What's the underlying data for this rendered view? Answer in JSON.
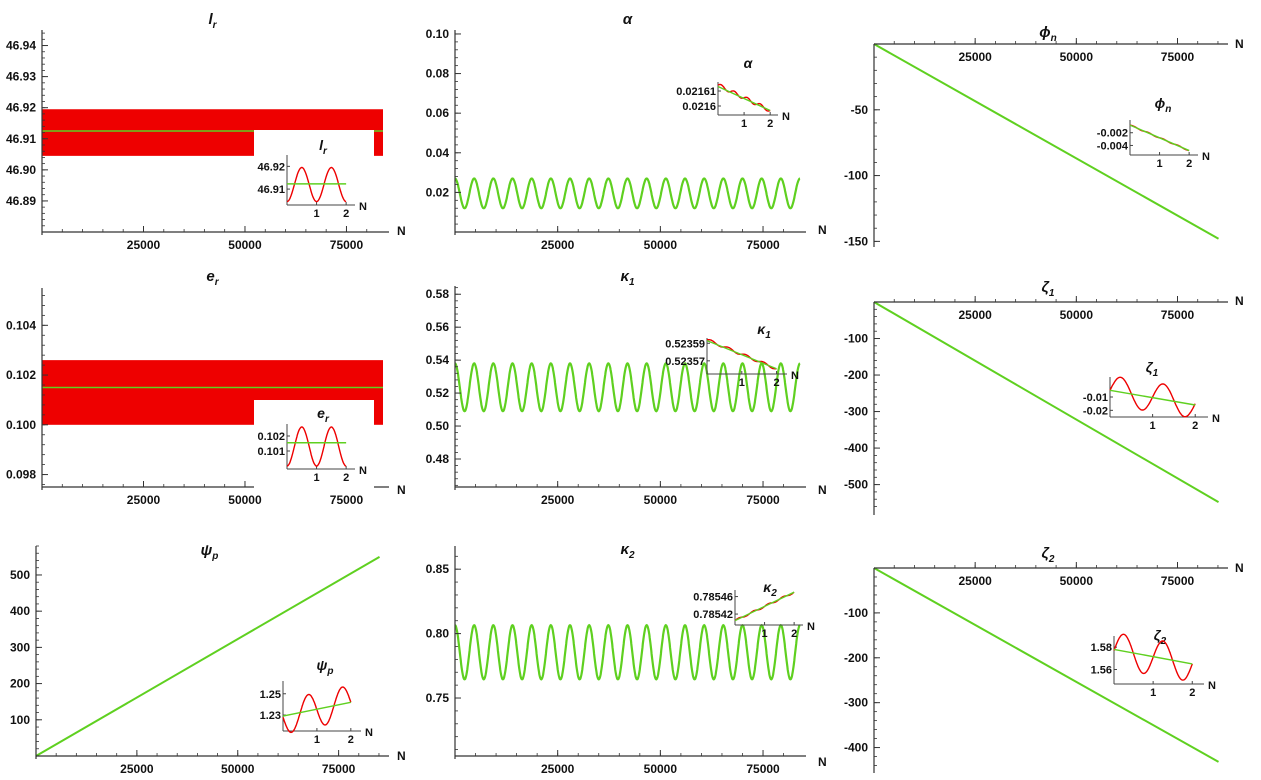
{
  "colors": {
    "band": "#ee0000",
    "mean": "#5fd020",
    "axis": "#333333"
  },
  "chart_data": [
    {
      "id": "lr",
      "type": "line",
      "title_main": "l",
      "title_sub": "r",
      "xlabel": "N",
      "xlim": [
        0,
        84000
      ],
      "ylim": [
        46.88,
        46.945
      ],
      "x_axis_at": 46.88,
      "xticks": [
        "25000",
        "50000",
        "75000"
      ],
      "xtick_values": [
        25000,
        50000,
        75000
      ],
      "yticks": [
        "46.89",
        "46.90",
        "46.91",
        "46.92",
        "46.93",
        "46.94"
      ],
      "ytick_values": [
        46.89,
        46.9,
        46.91,
        46.92,
        46.93,
        46.94
      ],
      "band": {
        "lo": 46.9045,
        "hi": 46.9195
      },
      "mean": 46.9125,
      "inset": {
        "title_main": "l",
        "title_sub": "r",
        "xlabel": "N",
        "xlim": [
          0,
          2.3
        ],
        "ylim": [
          46.903,
          46.925
        ],
        "xticks": [
          "1",
          "2"
        ],
        "xtick_values": [
          1,
          2
        ],
        "yticks": [
          "46.92",
          "46.91"
        ],
        "ytick_values": [
          46.92,
          46.91
        ],
        "red": {
          "kind": "sin",
          "amp": 0.0075,
          "offset": 46.912,
          "period": 1,
          "phase": 0.5
        },
        "green": {
          "start": 46.9123,
          "end": 46.9123
        }
      }
    },
    {
      "id": "alpha",
      "type": "line",
      "title_main": "α",
      "title_sub": "",
      "xlabel": "N",
      "xlim": [
        0,
        84000
      ],
      "ylim": [
        0,
        0.102
      ],
      "x_axis_at": 0,
      "xticks": [
        "25000",
        "50000",
        "75000"
      ],
      "xtick_values": [
        25000,
        50000,
        75000
      ],
      "yticks": [
        "0.02",
        "0.04",
        "0.06",
        "0.08",
        "0.10"
      ],
      "ytick_values": [
        0.02,
        0.04,
        0.06,
        0.08,
        0.1
      ],
      "oscillation": {
        "center": 0.0195,
        "amp": 0.0075,
        "cycles": 18
      },
      "inset": {
        "title_main": "α",
        "title_sub": "",
        "xlabel": "N",
        "xlim": [
          0,
          2.3
        ],
        "ylim": [
          0.021594,
          0.021616
        ],
        "xticks": [
          "1",
          "2"
        ],
        "xtick_values": [
          1,
          2
        ],
        "yticks": [
          "0.02161",
          "0.0216"
        ],
        "ytick_values": [
          0.02161,
          0.0216
        ],
        "red": {
          "kind": "wavy",
          "start": 0.021614,
          "end": 0.021597,
          "amp": 1.2e-06,
          "period": 0.5
        },
        "green": {
          "start": 0.021613,
          "end": 0.021597
        }
      }
    },
    {
      "id": "phin",
      "type": "line",
      "title_main": "ϕ",
      "title_sub": "n",
      "xlabel": "N",
      "xlim": [
        0,
        86000
      ],
      "ylim": [
        -152,
        0
      ],
      "x_axis_at": 0,
      "xticks": [
        "25000",
        "50000",
        "75000"
      ],
      "xtick_values": [
        25000,
        50000,
        75000
      ],
      "yticks": [
        "-50",
        "-100",
        "-150"
      ],
      "ytick_values": [
        -50,
        -100,
        -150
      ],
      "linear": {
        "start": 0,
        "end": -148
      },
      "inset": {
        "title_main": "ϕ",
        "title_sub": "n",
        "xlabel": "N",
        "xlim": [
          0,
          2.3
        ],
        "ylim": [
          -0.0055,
          0
        ],
        "xticks": [
          "1",
          "2"
        ],
        "xtick_values": [
          1,
          2
        ],
        "yticks": [
          "-0.002",
          "-0.004"
        ],
        "ytick_values": [
          -0.002,
          -0.004
        ],
        "red": {
          "kind": "wavy",
          "start": -0.0008,
          "end": -0.0048,
          "amp": 8e-05,
          "period": 0.5
        },
        "green": {
          "start": -0.0008,
          "end": -0.0048
        }
      }
    },
    {
      "id": "er",
      "type": "line",
      "title_main": "e",
      "title_sub": "r",
      "xlabel": "N",
      "xlim": [
        0,
        84000
      ],
      "ylim": [
        0.0975,
        0.1055
      ],
      "x_axis_at": 0.0975,
      "xticks": [
        "25000",
        "50000",
        "75000"
      ],
      "xtick_values": [
        25000,
        50000,
        75000
      ],
      "yticks": [
        "0.098",
        "0.100",
        "0.102",
        "0.104"
      ],
      "ytick_values": [
        0.098,
        0.1,
        0.102,
        0.104
      ],
      "band": {
        "lo": 0.1,
        "hi": 0.1026
      },
      "mean": 0.1015,
      "inset": {
        "title_main": "e",
        "title_sub": "r",
        "xlabel": "N",
        "xlim": [
          0,
          2.3
        ],
        "ylim": [
          0.0998,
          0.1028
        ],
        "xticks": [
          "1",
          "2"
        ],
        "xtick_values": [
          1,
          2
        ],
        "yticks": [
          "0.102",
          "0.101"
        ],
        "ytick_values": [
          0.102,
          0.101
        ],
        "red": {
          "kind": "sin",
          "amp": 0.0013,
          "offset": 0.1013,
          "period": 1,
          "phase": 0.5
        },
        "green": {
          "start": 0.10155,
          "end": 0.10155
        }
      }
    },
    {
      "id": "k1",
      "type": "line",
      "title_main": "κ",
      "title_sub": "1",
      "xlabel": "N",
      "xlim": [
        0,
        84000
      ],
      "ylim": [
        0.463,
        0.585
      ],
      "x_axis_at": 0.463,
      "xticks": [
        "25000",
        "50000",
        "75000"
      ],
      "xtick_values": [
        25000,
        50000,
        75000
      ],
      "yticks": [
        "0.48",
        "0.50",
        "0.52",
        "0.54",
        "0.56",
        "0.58"
      ],
      "ytick_values": [
        0.48,
        0.5,
        0.52,
        0.54,
        0.56,
        0.58
      ],
      "oscillation": {
        "center": 0.5235,
        "amp": 0.0145,
        "cycles": 18
      },
      "inset": {
        "title_main": "κ",
        "title_sub": "1",
        "xlabel": "N",
        "xlim": [
          0,
          2.3
        ],
        "ylim": [
          0.523555,
          0.523596
        ],
        "xticks": [
          "1",
          "2"
        ],
        "xtick_values": [
          1,
          2
        ],
        "yticks": [
          "0.52359",
          "0.52357"
        ],
        "ytick_values": [
          0.52359,
          0.52357
        ],
        "red": {
          "kind": "wavy",
          "start": 0.523594,
          "end": 0.523561,
          "amp": 1.5e-06,
          "period": 0.5
        },
        "green": {
          "start": 0.523593,
          "end": 0.523561
        }
      }
    },
    {
      "id": "z1",
      "type": "line",
      "title_main": "ζ",
      "title_sub": "1",
      "xlabel": "N",
      "xlim": [
        0,
        86000
      ],
      "ylim": [
        -575,
        0
      ],
      "x_axis_at": 0,
      "xticks": [
        "25000",
        "50000",
        "75000"
      ],
      "xtick_values": [
        25000,
        50000,
        75000
      ],
      "yticks": [
        "-100",
        "-200",
        "-300",
        "-400",
        "-500"
      ],
      "ytick_values": [
        -100,
        -200,
        -300,
        -400,
        -500
      ],
      "linear": {
        "start": 0,
        "end": -548
      },
      "inset": {
        "title_main": "ζ",
        "title_sub": "1",
        "xlabel": "N",
        "xlim": [
          0,
          2.3
        ],
        "ylim": [
          -0.025,
          0.005
        ],
        "xticks": [
          "1",
          "2"
        ],
        "xtick_values": [
          1,
          2
        ],
        "yticks": [
          "-0.01",
          "-0.02"
        ],
        "ytick_values": [
          -0.01,
          -0.02
        ],
        "red": {
          "kind": "sinlin",
          "start": -0.005,
          "end": -0.015,
          "amp": 0.011,
          "period": 1,
          "phase": 0
        },
        "green": {
          "start": -0.005,
          "end": -0.016
        }
      }
    },
    {
      "id": "psip",
      "type": "line",
      "title_main": "ψ",
      "title_sub": "p",
      "xlabel": "N",
      "xlim": [
        0,
        86000
      ],
      "ylim": [
        0,
        580
      ],
      "x_axis_at": 0,
      "xticks": [
        "25000",
        "50000",
        "75000"
      ],
      "xtick_values": [
        25000,
        50000,
        75000
      ],
      "yticks": [
        "100",
        "200",
        "300",
        "400",
        "500"
      ],
      "ytick_values": [
        100,
        200,
        300,
        400,
        500
      ],
      "linear": {
        "start": 0,
        "end": 550
      },
      "inset": {
        "title_main": "ψ",
        "title_sub": "p",
        "xlabel": "N",
        "xlim": [
          0,
          2.3
        ],
        "ylim": [
          1.215,
          1.262
        ],
        "xticks": [
          "1",
          "2"
        ],
        "xtick_values": [
          1,
          2
        ],
        "yticks": [
          "1.25",
          "1.23"
        ],
        "ytick_values": [
          1.25,
          1.23
        ],
        "red": {
          "kind": "sinlin",
          "start": 1.228,
          "end": 1.242,
          "amp": 0.016,
          "period": 1,
          "phase": 0.5
        },
        "green": {
          "start": 1.229,
          "end": 1.242
        }
      }
    },
    {
      "id": "k2",
      "type": "line",
      "title_main": "κ",
      "title_sub": "2",
      "xlabel": "N",
      "xlim": [
        0,
        84000
      ],
      "ylim": [
        0.705,
        0.868
      ],
      "x_axis_at": 0.705,
      "xticks": [
        "25000",
        "50000",
        "75000"
      ],
      "xtick_values": [
        25000,
        50000,
        75000
      ],
      "yticks": [
        "0.75",
        "0.80",
        "0.85"
      ],
      "ytick_values": [
        0.75,
        0.8,
        0.85
      ],
      "oscillation": {
        "center": 0.7855,
        "amp": 0.021,
        "cycles": 18
      },
      "inset": {
        "title_main": "κ",
        "title_sub": "2",
        "xlabel": "N",
        "xlim": [
          0,
          2.3
        ],
        "ylim": [
          0.785395,
          0.785475
        ],
        "xticks": [
          "1",
          "2"
        ],
        "xtick_values": [
          1,
          2
        ],
        "yticks": [
          "0.78546",
          "0.78542"
        ],
        "ytick_values": [
          0.78546,
          0.78542
        ],
        "red": {
          "kind": "wavy",
          "start": 0.785405,
          "end": 0.78547,
          "amp": 2e-06,
          "period": 0.5
        },
        "green": {
          "start": 0.785405,
          "end": 0.78547
        }
      }
    },
    {
      "id": "z2",
      "type": "line",
      "title_main": "ζ",
      "title_sub": "2",
      "xlabel": "N",
      "xlim": [
        0,
        86000
      ],
      "ylim": [
        -450,
        0
      ],
      "x_axis_at": 0,
      "xticks": [
        "25000",
        "50000",
        "75000"
      ],
      "xtick_values": [
        25000,
        50000,
        75000
      ],
      "yticks": [
        "-100",
        "-200",
        "-300",
        "-400"
      ],
      "ytick_values": [
        -100,
        -200,
        -300,
        -400
      ],
      "linear": {
        "start": 0,
        "end": -432
      },
      "inset": {
        "title_main": "ζ",
        "title_sub": "2",
        "xlabel": "N",
        "xlim": [
          0,
          2.3
        ],
        "ylim": [
          1.547,
          1.59
        ],
        "xticks": [
          "1",
          "2"
        ],
        "xtick_values": [
          1,
          2
        ],
        "yticks": [
          "1.58",
          "1.56"
        ],
        "ytick_values": [
          1.58,
          1.56
        ],
        "red": {
          "kind": "sinlin",
          "start": 1.577,
          "end": 1.565,
          "amp": 0.016,
          "period": 1,
          "phase": 0
        },
        "green": {
          "start": 1.578,
          "end": 1.565
        }
      }
    }
  ]
}
